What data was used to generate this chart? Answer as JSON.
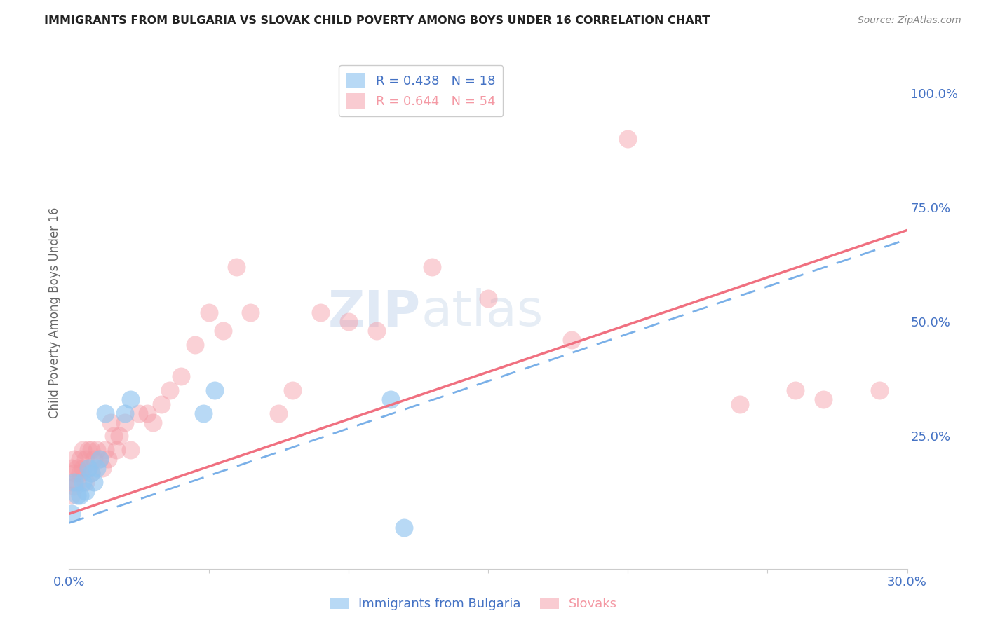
{
  "title": "IMMIGRANTS FROM BULGARIA VS SLOVAK CHILD POVERTY AMONG BOYS UNDER 16 CORRELATION CHART",
  "source": "Source: ZipAtlas.com",
  "ylabel": "Child Poverty Among Boys Under 16",
  "xlim": [
    0.0,
    0.3
  ],
  "ylim": [
    -0.04,
    1.08
  ],
  "xtick_positions": [
    0.0,
    0.05,
    0.1,
    0.15,
    0.2,
    0.25,
    0.3
  ],
  "xticklabels": [
    "0.0%",
    "",
    "",
    "",
    "",
    "",
    "30.0%"
  ],
  "yticks_right": [
    0.0,
    0.25,
    0.5,
    0.75,
    1.0
  ],
  "ytick_right_labels": [
    "",
    "25.0%",
    "50.0%",
    "75.0%",
    "100.0%"
  ],
  "bg_color": "#ffffff",
  "grid_color": "#e0e0e0",
  "blue_color": "#92c5f0",
  "pink_color": "#f499a4",
  "blue_line_color": "#7ab0e8",
  "pink_line_color": "#f07080",
  "label_color": "#4472c4",
  "axis_text_color": "#4472c4",
  "legend_r1": "R = 0.438",
  "legend_n1": "N = 18",
  "legend_r2": "R = 0.644",
  "legend_n2": "N = 54",
  "title_color": "#222222",
  "source_color": "#888888",
  "ylabel_color": "#666666",
  "blue_x": [
    0.001,
    0.002,
    0.003,
    0.004,
    0.005,
    0.006,
    0.007,
    0.008,
    0.009,
    0.01,
    0.011,
    0.013,
    0.02,
    0.022,
    0.048,
    0.052,
    0.115,
    0.12
  ],
  "blue_y": [
    0.08,
    0.15,
    0.12,
    0.12,
    0.15,
    0.13,
    0.18,
    0.17,
    0.15,
    0.18,
    0.2,
    0.3,
    0.3,
    0.33,
    0.3,
    0.35,
    0.33,
    0.05
  ],
  "pink_x": [
    0.001,
    0.001,
    0.001,
    0.002,
    0.002,
    0.002,
    0.003,
    0.003,
    0.004,
    0.004,
    0.005,
    0.005,
    0.006,
    0.006,
    0.007,
    0.007,
    0.008,
    0.008,
    0.009,
    0.01,
    0.011,
    0.012,
    0.013,
    0.014,
    0.015,
    0.016,
    0.017,
    0.018,
    0.02,
    0.022,
    0.025,
    0.028,
    0.03,
    0.033,
    0.036,
    0.04,
    0.045,
    0.05,
    0.055,
    0.06,
    0.065,
    0.075,
    0.08,
    0.09,
    0.1,
    0.11,
    0.13,
    0.15,
    0.18,
    0.2,
    0.24,
    0.26,
    0.27,
    0.29
  ],
  "pink_y": [
    0.15,
    0.18,
    0.12,
    0.17,
    0.2,
    0.14,
    0.18,
    0.15,
    0.2,
    0.17,
    0.22,
    0.18,
    0.15,
    0.2,
    0.18,
    0.22,
    0.17,
    0.22,
    0.2,
    0.22,
    0.2,
    0.18,
    0.22,
    0.2,
    0.28,
    0.25,
    0.22,
    0.25,
    0.28,
    0.22,
    0.3,
    0.3,
    0.28,
    0.32,
    0.35,
    0.38,
    0.45,
    0.52,
    0.48,
    0.62,
    0.52,
    0.3,
    0.35,
    0.52,
    0.5,
    0.48,
    0.62,
    0.55,
    0.46,
    0.9,
    0.32,
    0.35,
    0.33,
    0.35
  ]
}
